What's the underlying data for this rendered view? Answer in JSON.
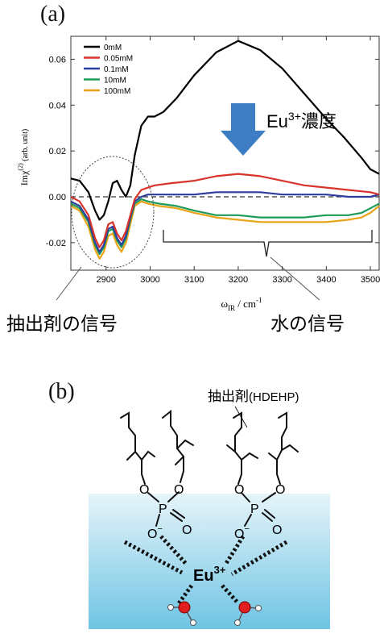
{
  "panel_a": {
    "label": "(a)"
  },
  "panel_b": {
    "label": "(b)"
  },
  "chart_data": {
    "type": "line",
    "xlabel_main": "ω",
    "xlabel_sub": "IR",
    "xlabel_unit": " / cm",
    "xlabel_exp": "-1",
    "ylabel_main": "Imχ",
    "ylabel_sup": "(2)",
    "ylabel_unit": " (arb. unit)",
    "xlim": [
      2820,
      3520
    ],
    "ylim": [
      -0.032,
      0.07
    ],
    "xticks": [
      2900,
      3000,
      3100,
      3200,
      3300,
      3400,
      3500
    ],
    "xtick_labels": [
      "2900",
      "3000",
      "3100",
      "3200",
      "3300",
      "3400",
      "3500"
    ],
    "yticks": [
      -0.02,
      0,
      0.02,
      0.04,
      0.06
    ],
    "ytick_labels": [
      "-0.02",
      "0.00",
      "0.02",
      "0.04",
      "0.06"
    ],
    "legend_position": "top-left",
    "zero_line": "dashed",
    "series": [
      {
        "name": "0mM",
        "color": "#000000",
        "x": [
          2820,
          2840,
          2860,
          2875,
          2885,
          2895,
          2905,
          2915,
          2925,
          2935,
          2945,
          2955,
          2965,
          2980,
          2995,
          3010,
          3030,
          3060,
          3100,
          3150,
          3200,
          3250,
          3300,
          3350,
          3400,
          3440,
          3480,
          3500,
          3520
        ],
        "y": [
          0.008,
          0.007,
          0.002,
          -0.006,
          -0.01,
          -0.008,
          -0.002,
          0.006,
          0.007,
          0.003,
          0.0,
          0.005,
          0.018,
          0.031,
          0.035,
          0.035,
          0.037,
          0.043,
          0.053,
          0.063,
          0.068,
          0.064,
          0.056,
          0.045,
          0.034,
          0.026,
          0.017,
          0.012,
          0.01
        ]
      },
      {
        "name": "0.05mM",
        "color": "#d9342b",
        "x": [
          2820,
          2840,
          2860,
          2875,
          2885,
          2895,
          2905,
          2915,
          2925,
          2935,
          2945,
          2955,
          2965,
          2980,
          2995,
          3010,
          3050,
          3100,
          3150,
          3200,
          3250,
          3300,
          3350,
          3400,
          3450,
          3500,
          3520
        ],
        "y": [
          0.0,
          -0.002,
          -0.008,
          -0.018,
          -0.022,
          -0.019,
          -0.012,
          -0.011,
          -0.016,
          -0.019,
          -0.015,
          -0.008,
          -0.001,
          0.003,
          0.004,
          0.005,
          0.006,
          0.007,
          0.009,
          0.01,
          0.009,
          0.007,
          0.005,
          0.004,
          0.003,
          0.002,
          0.001
        ]
      },
      {
        "name": "0.1mM",
        "color": "#2b3d9e",
        "x": [
          2820,
          2840,
          2860,
          2875,
          2885,
          2895,
          2905,
          2915,
          2925,
          2935,
          2945,
          2955,
          2965,
          2980,
          2995,
          3050,
          3100,
          3150,
          3200,
          3250,
          3300,
          3350,
          3400,
          3450,
          3500,
          3520
        ],
        "y": [
          -0.002,
          -0.004,
          -0.01,
          -0.02,
          -0.024,
          -0.021,
          -0.014,
          -0.013,
          -0.018,
          -0.021,
          -0.017,
          -0.009,
          -0.002,
          0.0,
          0.001,
          0.001,
          0.001,
          0.002,
          0.002,
          0.002,
          0.001,
          0.001,
          0.001,
          0.0,
          0.0,
          0.001
        ]
      },
      {
        "name": "10mM",
        "color": "#1e9a5a",
        "x": [
          2820,
          2840,
          2860,
          2875,
          2885,
          2895,
          2905,
          2915,
          2925,
          2935,
          2945,
          2955,
          2965,
          2980,
          2995,
          3020,
          3060,
          3100,
          3150,
          3200,
          3250,
          3300,
          3350,
          3400,
          3450,
          3480,
          3500,
          3520
        ],
        "y": [
          -0.003,
          -0.005,
          -0.011,
          -0.021,
          -0.025,
          -0.022,
          -0.015,
          -0.014,
          -0.019,
          -0.022,
          -0.018,
          -0.01,
          -0.003,
          -0.001,
          -0.002,
          -0.003,
          -0.004,
          -0.006,
          -0.008,
          -0.008,
          -0.009,
          -0.009,
          -0.009,
          -0.008,
          -0.008,
          -0.007,
          -0.005,
          -0.003
        ]
      },
      {
        "name": "100mM",
        "color": "#e8a416",
        "x": [
          2820,
          2840,
          2860,
          2875,
          2885,
          2895,
          2905,
          2915,
          2925,
          2935,
          2945,
          2955,
          2965,
          2980,
          2995,
          3020,
          3060,
          3100,
          3150,
          3200,
          3250,
          3300,
          3350,
          3400,
          3450,
          3480,
          3500,
          3520
        ],
        "y": [
          -0.004,
          -0.006,
          -0.013,
          -0.023,
          -0.027,
          -0.024,
          -0.017,
          -0.016,
          -0.021,
          -0.024,
          -0.02,
          -0.012,
          -0.004,
          -0.002,
          -0.003,
          -0.004,
          -0.005,
          -0.007,
          -0.009,
          -0.01,
          -0.011,
          -0.011,
          -0.011,
          -0.011,
          -0.01,
          -0.009,
          -0.007,
          -0.004
        ]
      }
    ],
    "annotations": {
      "arrow_base": "Eu",
      "arrow_sup": "3+",
      "arrow_after": "濃度",
      "left_region": "抽出剤の信号",
      "right_region": "水の信号"
    }
  },
  "diagram_b": {
    "extractant_label": "抽出剤",
    "extractant_abbrev": "(HDEHP)",
    "ion_base": "Eu",
    "ion_sup": "3+",
    "atoms": {
      "o": "O",
      "p": "P",
      "o_minus_base": "O",
      "o_minus_sup": "−"
    },
    "colors": {
      "water_top": "#e6f4fa",
      "water_bottom": "#6ec4e3",
      "oxygen": "#e02020",
      "arrow": "#3c7dc4"
    }
  }
}
